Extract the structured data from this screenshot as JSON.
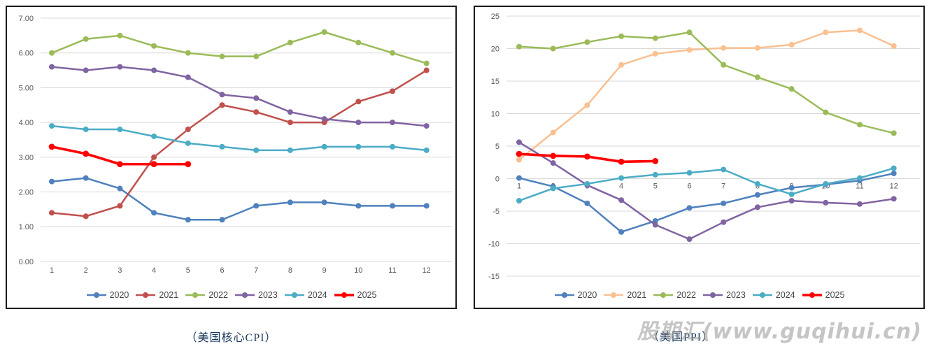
{
  "watermark": {
    "text": "股期汇(www.guqihui.cn)"
  },
  "colors": {
    "grid": "#d9d9d9",
    "axis_text": "#595959",
    "panel_border": "#1c1c1c",
    "caption_text": "#17375e",
    "watermark_text": "#969696"
  },
  "chart_data": [
    {
      "name": "us-core-cpi",
      "type": "line",
      "caption": "（美国核心CPI）",
      "x_labels": [
        "1",
        "2",
        "3",
        "4",
        "5",
        "6",
        "7",
        "8",
        "9",
        "10",
        "11",
        "12"
      ],
      "ylim": [
        0,
        7
      ],
      "grid": true,
      "legend_position": "bottom",
      "y_ticks": [
        {
          "value": 7,
          "label": "7.00"
        },
        {
          "value": 6,
          "label": "6.00"
        },
        {
          "value": 5,
          "label": "5.00"
        },
        {
          "value": 4,
          "label": "4.00"
        },
        {
          "value": 3,
          "label": "3.00"
        },
        {
          "value": 2,
          "label": "2.00"
        },
        {
          "value": 1,
          "label": "1.00"
        },
        {
          "value": 0,
          "label": "0.00"
        }
      ],
      "series": [
        {
          "name": "2020",
          "color": "#4F81BD",
          "values": [
            2.3,
            2.4,
            2.1,
            1.4,
            1.2,
            1.2,
            1.6,
            1.7,
            1.7,
            1.6,
            1.6,
            1.6
          ]
        },
        {
          "name": "2021",
          "color": "#C0504D",
          "values": [
            1.4,
            1.3,
            1.6,
            3.0,
            3.8,
            4.5,
            4.3,
            4.0,
            4.0,
            4.6,
            4.9,
            5.5
          ]
        },
        {
          "name": "2022",
          "color": "#9BBB59",
          "values": [
            6.0,
            6.4,
            6.5,
            6.2,
            6.0,
            5.9,
            5.9,
            6.3,
            6.6,
            6.3,
            6.0,
            5.7
          ]
        },
        {
          "name": "2023",
          "color": "#8064A2",
          "values": [
            5.6,
            5.5,
            5.6,
            5.5,
            5.3,
            4.8,
            4.7,
            4.3,
            4.1,
            4.0,
            4.0,
            3.9
          ]
        },
        {
          "name": "2024",
          "color": "#4BACC6",
          "values": [
            3.9,
            3.8,
            3.8,
            3.6,
            3.4,
            3.3,
            3.2,
            3.2,
            3.3,
            3.3,
            3.3,
            3.2
          ]
        },
        {
          "name": "2025",
          "color": "#FF0000",
          "emphasis": true,
          "values": [
            3.3,
            3.1,
            2.8,
            2.8,
            2.8
          ]
        }
      ]
    },
    {
      "name": "us-ppi",
      "type": "line",
      "caption": "（美国PPI）",
      "x_labels": [
        "1",
        "2",
        "3",
        "4",
        "5",
        "6",
        "7",
        "8",
        "9",
        "10",
        "11",
        "12"
      ],
      "ylim": [
        -15,
        25
      ],
      "grid": true,
      "legend_position": "bottom",
      "y_ticks": [
        {
          "value": 25,
          "label": "25"
        },
        {
          "value": 20,
          "label": "20"
        },
        {
          "value": 15,
          "label": "15"
        },
        {
          "value": 10,
          "label": "10"
        },
        {
          "value": 5,
          "label": "5"
        },
        {
          "value": 0,
          "label": "0"
        },
        {
          "value": -5,
          "label": "-5"
        },
        {
          "value": -10,
          "label": "-10"
        },
        {
          "value": -15,
          "label": "-15"
        }
      ],
      "series": [
        {
          "name": "2020",
          "color": "#4F81BD",
          "values": [
            0.1,
            -1.2,
            -3.8,
            -8.2,
            -6.5,
            -4.5,
            -3.8,
            -2.5,
            -1.4,
            -0.9,
            -0.3,
            0.8
          ]
        },
        {
          "name": "2021",
          "color": "#FAC090",
          "values": [
            2.9,
            7.1,
            11.3,
            17.5,
            19.2,
            19.8,
            20.1,
            20.1,
            20.6,
            22.5,
            22.8,
            20.4
          ]
        },
        {
          "name": "2022",
          "color": "#9BBB59",
          "values": [
            20.3,
            20.0,
            21.0,
            21.9,
            21.6,
            22.5,
            17.5,
            15.6,
            13.8,
            10.2,
            8.3,
            7.0
          ]
        },
        {
          "name": "2023",
          "color": "#8064A2",
          "values": [
            5.6,
            2.4,
            -1.0,
            -3.3,
            -7.1,
            -9.3,
            -6.7,
            -4.4,
            -3.4,
            -3.7,
            -3.9,
            -3.1
          ]
        },
        {
          "name": "2024",
          "color": "#4BACC6",
          "values": [
            -3.4,
            -1.5,
            -0.8,
            0.1,
            0.6,
            0.9,
            1.4,
            -0.8,
            -2.4,
            -0.8,
            0.1,
            1.6
          ]
        },
        {
          "name": "2025",
          "color": "#FF0000",
          "emphasis": true,
          "values": [
            3.8,
            3.5,
            3.4,
            2.6,
            2.7
          ]
        }
      ]
    }
  ]
}
